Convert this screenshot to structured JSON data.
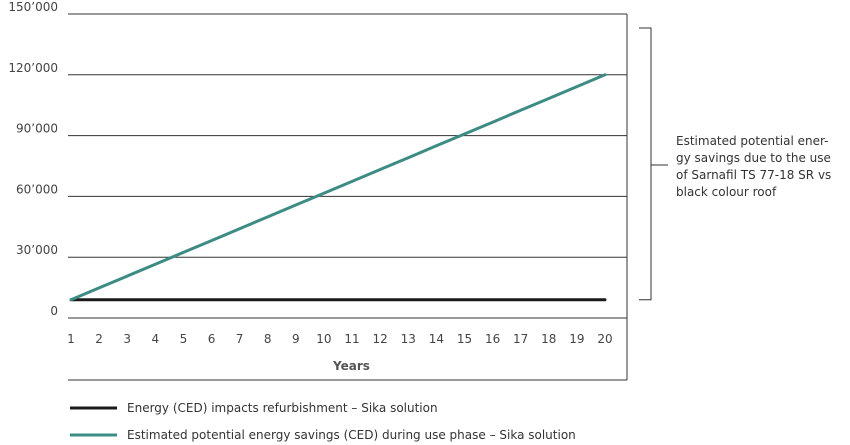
{
  "chart_data": {
    "type": "line",
    "title": "",
    "xlabel": "Years",
    "ylabel": "",
    "x": [
      1,
      2,
      3,
      4,
      5,
      6,
      7,
      8,
      9,
      10,
      11,
      12,
      13,
      14,
      15,
      16,
      17,
      18,
      19,
      20
    ],
    "x_tick_labels": [
      "1",
      "2",
      "3",
      "4",
      "5",
      "6",
      "7",
      "8",
      "9",
      "10",
      "11",
      "12",
      "13",
      "14",
      "15",
      "16",
      "17",
      "18",
      "19",
      "20"
    ],
    "ylim": [
      0,
      150000
    ],
    "y_ticks": [
      0,
      30000,
      60000,
      90000,
      120000,
      150000
    ],
    "y_tick_labels": [
      "0",
      "30’000",
      "60’000",
      "90’000",
      "120’000",
      "150’000"
    ],
    "grid": "horizontal",
    "legend_position": "bottom-left",
    "series": [
      {
        "name": "Energy (CED) impacts refurbishment – Sika solution",
        "color": "#1a1a1a",
        "values": [
          9000,
          9000,
          9000,
          9000,
          9000,
          9000,
          9000,
          9000,
          9000,
          9000,
          9000,
          9000,
          9000,
          9000,
          9000,
          9000,
          9000,
          9000,
          9000,
          9000
        ]
      },
      {
        "name": "Estimated potential energy savings (CED) during use phase – Sika solution",
        "color": "#3d8c84",
        "values": [
          9000,
          14842,
          20684,
          26526,
          32368,
          38210,
          44052,
          49894,
          55736,
          61578,
          67420,
          73262,
          79104,
          84946,
          90788,
          96630,
          102472,
          108314,
          114156,
          120000
        ]
      }
    ],
    "annotation": {
      "lines": [
        "Estimated potential ener-",
        "gy savings due to the use",
        "of Sarnafil TS 77-18 SR vs",
        "black colour roof"
      ]
    }
  }
}
